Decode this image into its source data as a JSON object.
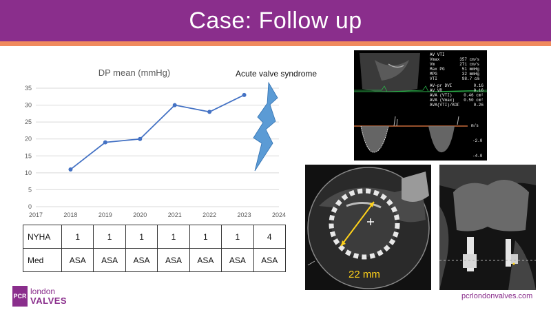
{
  "header": {
    "title": "Case: Follow up"
  },
  "chart_data": {
    "type": "line",
    "title": "DP mean (mmHg)",
    "x": [
      2018,
      2019,
      2020,
      2021,
      2022,
      2023
    ],
    "values": [
      11,
      19,
      20,
      30,
      28,
      33
    ],
    "xlim": [
      2017,
      2024
    ],
    "ylim": [
      0,
      35
    ],
    "x_ticks": [
      "2017",
      "2018",
      "2019",
      "2020",
      "2021",
      "2022",
      "2023",
      "2024"
    ],
    "y_ticks": [
      "0",
      "5",
      "10",
      "15",
      "20",
      "25",
      "30",
      "35"
    ],
    "grid": "horizontal",
    "line_color": "#4472c4",
    "annotation": "Acute valve syndrome"
  },
  "table": {
    "rows": [
      {
        "label": "NYHA",
        "values": [
          "1",
          "1",
          "1",
          "1",
          "1",
          "1",
          "4"
        ]
      },
      {
        "label": "Med",
        "values": [
          "ASA",
          "ASA",
          "ASA",
          "ASA",
          "ASA",
          "ASA",
          "ASA"
        ]
      }
    ]
  },
  "echo": {
    "header": "AV VTI",
    "measurements": [
      {
        "k": "Vmax",
        "v": "357 cm/s"
      },
      {
        "k": "Vm",
        "v": "271 cm/s"
      },
      {
        "k": "Max PG",
        "v": "51 mmHg"
      },
      {
        "k": "MPG",
        "v": "32 mmHg"
      },
      {
        "k": "VTI",
        "v": "98.7 cm"
      }
    ],
    "measurements2": [
      {
        "k": "AV-pr DVI",
        "v": "0.16"
      },
      {
        "k": "AV VR",
        "v": "0.16"
      },
      {
        "k": "AVA (VTI)",
        "v": "0.46 cm²"
      },
      {
        "k": "AVA (Vmax)",
        "v": "0.50 cm²"
      },
      {
        "k": "AVA(VTI)/KOF",
        "v": "0.26"
      }
    ],
    "scale": [
      "m/s",
      "-2.0",
      "-4.0"
    ]
  },
  "ct": {
    "measure_label": "22 mm"
  },
  "footer": {
    "logo_badge": "PCR",
    "logo_line1": "london",
    "logo_line2": "VALVES",
    "url": "pcrlondonvalves.com"
  },
  "colors": {
    "brand": "#8a2e8c",
    "accent": "#f08a5d",
    "series": "#4472c4",
    "measure": "#ffd21a"
  }
}
